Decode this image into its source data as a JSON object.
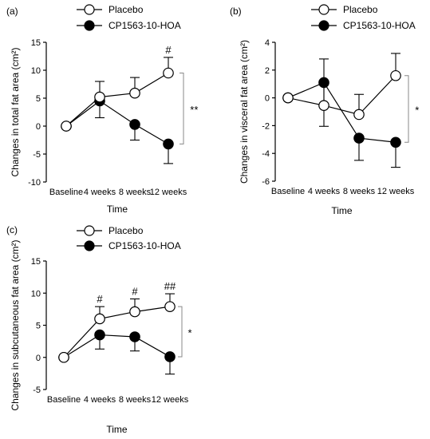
{
  "chart_data": [
    {
      "type": "line",
      "panel_label": "(a)",
      "ylabel": "Changes in total fat area (cm²)",
      "xlabel": "Time",
      "categories": [
        "Baseline",
        "4 weeks",
        "8 weeks",
        "12 weeks"
      ],
      "ylim": [
        -10,
        15
      ],
      "yticks": [
        -10,
        -5,
        0,
        5,
        10,
        15
      ],
      "series": [
        {
          "name": "Placebo",
          "marker": "open-circle",
          "values": [
            0,
            5.2,
            5.9,
            9.5
          ],
          "err": [
            0,
            2.8,
            2.8,
            2.8
          ],
          "marks": [
            "",
            "",
            "",
            "#"
          ]
        },
        {
          "name": "CP1563-10-HOA",
          "marker": "filled-circle",
          "values": [
            0,
            4.5,
            0.3,
            -3.2
          ],
          "err": [
            0,
            3.0,
            2.8,
            3.5
          ],
          "marks": [
            "",
            "",
            "",
            ""
          ]
        }
      ],
      "bracket_label": "**"
    },
    {
      "type": "line",
      "panel_label": "(b)",
      "ylabel": "Changes in visceral fat area (cm²)",
      "xlabel": "Time",
      "categories": [
        "Baseline",
        "4 weeks",
        "8 weeks",
        "12 weeks"
      ],
      "ylim": [
        -6,
        4
      ],
      "yticks": [
        -6,
        -4,
        -2,
        0,
        2,
        4
      ],
      "series": [
        {
          "name": "Placebo",
          "marker": "open-circle",
          "values": [
            0,
            -0.55,
            -1.2,
            1.6
          ],
          "err": [
            0,
            1.5,
            1.45,
            1.6
          ],
          "marks": [
            "",
            "",
            "",
            ""
          ]
        },
        {
          "name": "CP1563-10-HOA",
          "marker": "filled-circle",
          "values": [
            0,
            1.1,
            -2.9,
            -3.2
          ],
          "err": [
            0,
            1.7,
            1.6,
            1.8
          ],
          "marks": [
            "",
            "",
            "",
            ""
          ]
        }
      ],
      "bracket_label": "*"
    },
    {
      "type": "line",
      "panel_label": "(c)",
      "ylabel": "Changes in subcutaneous fat area (cm²)",
      "xlabel": "Time",
      "categories": [
        "Baseline",
        "4 weeks",
        "8 weeks",
        "12 weeks"
      ],
      "ylim": [
        -5,
        15
      ],
      "yticks": [
        -5,
        0,
        5,
        10,
        15
      ],
      "series": [
        {
          "name": "Placebo",
          "marker": "open-circle",
          "values": [
            0,
            6.0,
            7.1,
            7.9
          ],
          "err": [
            0,
            1.9,
            2.0,
            2.0
          ],
          "marks": [
            "",
            "#",
            "#",
            "##"
          ]
        },
        {
          "name": "CP1563-10-HOA",
          "marker": "filled-circle",
          "values": [
            0,
            3.5,
            3.2,
            0.1
          ],
          "err": [
            0,
            2.2,
            2.2,
            2.7
          ],
          "marks": [
            "",
            "",
            "",
            ""
          ]
        }
      ],
      "bracket_label": "*"
    }
  ]
}
